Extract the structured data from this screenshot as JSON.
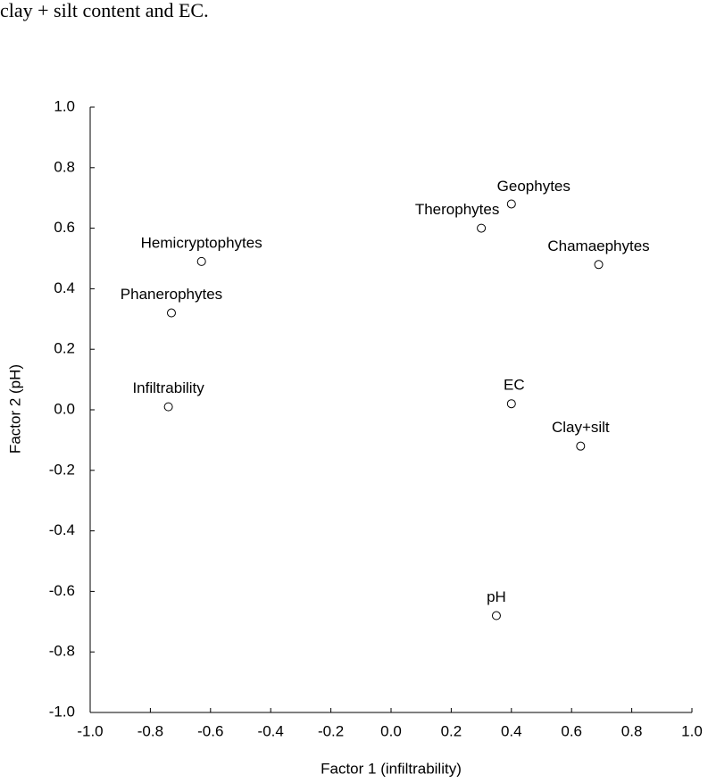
{
  "caption": "clay + silt content and EC.",
  "chart_data": {
    "type": "scatter",
    "xlabel": "Factor 1 (infiltrability)",
    "ylabel": "Factor 2 (pH)",
    "labels": [
      "Geophytes",
      "Therophytes",
      "Chamaephytes",
      "Hemicryptophytes",
      "Phanerophytes",
      "Infiltrability",
      "EC",
      "Clay+silt",
      "pH"
    ],
    "x": [
      0.4,
      0.3,
      0.69,
      -0.63,
      -0.73,
      -0.74,
      0.4,
      0.63,
      0.35
    ],
    "values": [
      0.68,
      0.6,
      0.48,
      0.49,
      0.32,
      0.01,
      0.02,
      -0.12,
      -0.68
    ],
    "color": "#000000",
    "xlim": [
      -1,
      1
    ],
    "xticks": [
      {
        "value": -1,
        "label": "-1.0"
      },
      -0.8,
      -0.6,
      -0.4,
      -0.2,
      {
        "value": 0,
        "label": "0.0"
      },
      0.2,
      0.4,
      0.6,
      0.8,
      {
        "value": 1,
        "label": "1.0"
      }
    ],
    "ylim": [
      -1,
      1
    ],
    "yticks": [
      {
        "value": -1,
        "label": "-1.0"
      },
      -0.8,
      -0.6,
      -0.4,
      -0.2,
      {
        "value": 0,
        "label": "0.0"
      },
      0.2,
      0.4,
      0.6,
      0.8,
      {
        "value": 1,
        "label": "1.0"
      }
    ]
  }
}
